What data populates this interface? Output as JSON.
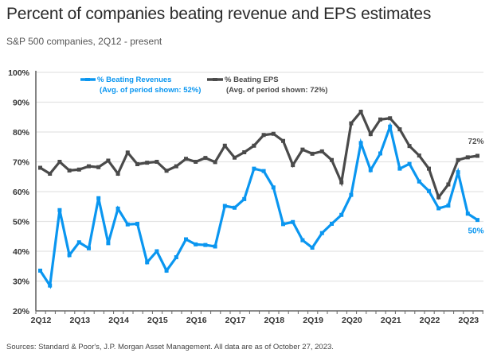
{
  "title": "Percent of companies beating revenue and EPS estimates",
  "subtitle": "S&P 500 companies, 2Q12 - present",
  "source": "Sources: Standard & Poor's, J.P. Morgan Asset Management. All data are as of October 27, 2023.",
  "chart_data": {
    "type": "line",
    "title": "Percent of companies beating revenue and EPS estimates",
    "xlabel": "",
    "ylabel": "",
    "ylim": [
      20,
      100
    ],
    "yticks": [
      "20%",
      "30%",
      "40%",
      "50%",
      "60%",
      "70%",
      "80%",
      "90%",
      "100%"
    ],
    "ytick_values": [
      20,
      30,
      40,
      50,
      60,
      70,
      80,
      90,
      100
    ],
    "xtick_labels": [
      "2Q12",
      "2Q13",
      "2Q14",
      "2Q15",
      "2Q16",
      "2Q17",
      "2Q18",
      "2Q19",
      "2Q20",
      "2Q21",
      "2Q22",
      "2Q23"
    ],
    "grid": true,
    "legend_placement": "top",
    "x": [
      "2Q12",
      "3Q12",
      "4Q12",
      "1Q13",
      "2Q13",
      "3Q13",
      "4Q13",
      "1Q14",
      "2Q14",
      "3Q14",
      "4Q14",
      "1Q15",
      "2Q15",
      "3Q15",
      "4Q15",
      "1Q16",
      "2Q16",
      "3Q16",
      "4Q16",
      "1Q17",
      "2Q17",
      "3Q17",
      "4Q17",
      "1Q18",
      "2Q18",
      "3Q18",
      "4Q18",
      "1Q19",
      "2Q19",
      "3Q19",
      "4Q19",
      "1Q20",
      "2Q20",
      "3Q20",
      "4Q20",
      "1Q21",
      "2Q21",
      "3Q21",
      "4Q21",
      "1Q22",
      "2Q22",
      "3Q22",
      "4Q22",
      "1Q23",
      "2Q23",
      "3Q23"
    ],
    "series": [
      {
        "name": "% Beating Revenues",
        "legend_sub": "(Avg. of period shown: 52%)",
        "color": "#0a96f0",
        "end_label": "50%",
        "values": [
          33.5,
          28.5,
          53.8,
          38.7,
          43.0,
          41.0,
          57.8,
          42.7,
          54.3,
          49.0,
          49.2,
          36.3,
          40.0,
          33.5,
          38.0,
          44.0,
          42.3,
          42.1,
          41.6,
          55.2,
          54.6,
          57.5,
          67.7,
          66.9,
          61.4,
          49.1,
          49.8,
          43.7,
          41.2,
          46.1,
          49.2,
          52.2,
          58.9,
          76.3,
          67.2,
          72.8,
          81.8,
          67.7,
          69.3,
          63.4,
          60.2,
          54.4,
          55.3,
          66.5,
          52.6,
          50.5
        ]
      },
      {
        "name": "% Beating EPS",
        "legend_sub": "(Avg. of period shown: 72%)",
        "color": "#4a4a4a",
        "end_label": "72%",
        "values": [
          68.0,
          66.0,
          70.0,
          67.1,
          67.4,
          68.5,
          68.2,
          70.4,
          66.0,
          73.1,
          69.2,
          69.7,
          70.0,
          67.0,
          68.5,
          71.0,
          70.0,
          71.3,
          69.9,
          75.4,
          71.4,
          73.2,
          75.4,
          79.0,
          79.4,
          77.0,
          68.9,
          74.1,
          72.7,
          73.5,
          70.6,
          63.1,
          82.9,
          86.8,
          79.3,
          84.2,
          84.6,
          80.9,
          75.3,
          72.1,
          67.7,
          58.1,
          62.4,
          70.6,
          71.5,
          72.0
        ]
      }
    ]
  }
}
